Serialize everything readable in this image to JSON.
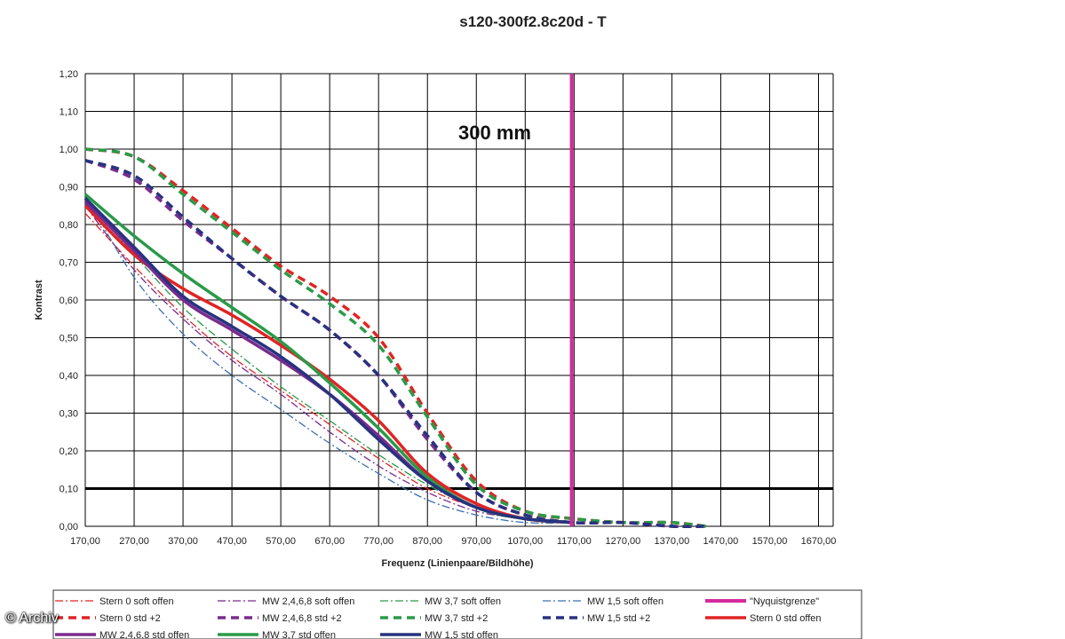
{
  "chart_data": {
    "type": "line",
    "title": "s120-300f2.8c20d - T",
    "annotation": "300 mm",
    "xlabel": "Frequenz (Linienpaare/Bildhöhe)",
    "ylabel": "Kontrast",
    "xlim": [
      170,
      1700
    ],
    "ylim": [
      0,
      1.2
    ],
    "x_ticks": [
      "170,00",
      "270,00",
      "370,00",
      "470,00",
      "570,00",
      "670,00",
      "770,00",
      "870,00",
      "970,00",
      "1070,00",
      "1170,00",
      "1270,00",
      "1370,00",
      "1470,00",
      "1570,00",
      "1670,00"
    ],
    "y_ticks": [
      "0,00",
      "0,10",
      "0,20",
      "0,30",
      "0,40",
      "0,50",
      "0,60",
      "0,70",
      "0,80",
      "0,90",
      "1,00",
      "1,10",
      "1,20"
    ],
    "grid": true,
    "legend_position": "bottom",
    "threshold_line": {
      "y": 0.1,
      "color": "#000000"
    },
    "series": [
      {
        "name": "Stern 0 soft offen",
        "color": "#e02424",
        "style": "dashdot",
        "x": [
          170,
          270,
          370,
          470,
          570,
          670,
          770,
          870,
          970,
          1070,
          1170
        ],
        "y": [
          0.83,
          0.69,
          0.56,
          0.45,
          0.36,
          0.27,
          0.18,
          0.1,
          0.05,
          0.02,
          0.01
        ]
      },
      {
        "name": "MW 2,4,6,8 soft offen",
        "color": "#7a2b8e",
        "style": "dashdot",
        "x": [
          170,
          270,
          370,
          470,
          570,
          670,
          770,
          870,
          970,
          1070,
          1170
        ],
        "y": [
          0.85,
          0.68,
          0.55,
          0.44,
          0.35,
          0.25,
          0.16,
          0.09,
          0.04,
          0.02,
          0.01
        ]
      },
      {
        "name": "MW 3,7 soft offen",
        "color": "#2a9a48",
        "style": "dashdot",
        "x": [
          170,
          270,
          370,
          470,
          570,
          670,
          770,
          870,
          970,
          1070,
          1170
        ],
        "y": [
          0.87,
          0.72,
          0.58,
          0.47,
          0.37,
          0.28,
          0.19,
          0.11,
          0.05,
          0.02,
          0.01
        ]
      },
      {
        "name": "MW 1,5 soft offen",
        "color": "#3a6fb0",
        "style": "dashdot",
        "x": [
          170,
          270,
          370,
          470,
          570,
          670,
          770,
          870,
          970,
          1070,
          1170
        ],
        "y": [
          0.88,
          0.66,
          0.51,
          0.4,
          0.31,
          0.22,
          0.14,
          0.07,
          0.03,
          0.01,
          0.01
        ]
      },
      {
        "name": "\"Nyquistgrenze\"",
        "color": "#d42a9c",
        "style": "vertical",
        "x_at": 1165
      },
      {
        "name": "Stern 0 std +2",
        "color": "#e02424",
        "style": "dashed",
        "x": [
          170,
          270,
          370,
          470,
          570,
          670,
          770,
          870,
          970,
          1070,
          1170,
          1270,
          1370,
          1440
        ],
        "y": [
          1.0,
          0.98,
          0.89,
          0.79,
          0.69,
          0.61,
          0.5,
          0.3,
          0.12,
          0.04,
          0.02,
          0.01,
          0.01,
          0.0
        ]
      },
      {
        "name": "MW 2,4,6,8 std +2",
        "color": "#7a2b8e",
        "style": "dashed",
        "x": [
          170,
          270,
          370,
          470,
          570,
          670,
          770,
          870,
          970,
          1070,
          1170,
          1270,
          1370,
          1440
        ],
        "y": [
          0.97,
          0.92,
          0.81,
          0.71,
          0.61,
          0.52,
          0.4,
          0.23,
          0.09,
          0.03,
          0.01,
          0.01,
          0.0,
          0.0
        ]
      },
      {
        "name": "MW 3,7 std +2",
        "color": "#2a9a48",
        "style": "dashed",
        "x": [
          170,
          270,
          370,
          470,
          570,
          670,
          770,
          870,
          970,
          1070,
          1170,
          1270,
          1370,
          1440
        ],
        "y": [
          1.0,
          0.98,
          0.88,
          0.78,
          0.68,
          0.59,
          0.48,
          0.29,
          0.11,
          0.04,
          0.02,
          0.01,
          0.01,
          0.0
        ]
      },
      {
        "name": "MW 1,5 std +2",
        "color": "#27337f",
        "style": "dashed",
        "x": [
          170,
          270,
          370,
          470,
          570,
          670,
          770,
          870,
          970,
          1070,
          1170,
          1270,
          1370,
          1440
        ],
        "y": [
          0.97,
          0.93,
          0.82,
          0.71,
          0.61,
          0.52,
          0.4,
          0.24,
          0.09,
          0.03,
          0.01,
          0.01,
          0.0,
          0.0
        ]
      },
      {
        "name": "Stern 0 std offen",
        "color": "#e02424",
        "style": "solid",
        "x": [
          170,
          270,
          370,
          470,
          570,
          670,
          770,
          870,
          970,
          1070,
          1170
        ],
        "y": [
          0.85,
          0.72,
          0.63,
          0.56,
          0.48,
          0.39,
          0.28,
          0.14,
          0.06,
          0.02,
          0.01
        ]
      },
      {
        "name": "MW 2,4,6,8 std offen",
        "color": "#7a2b8e",
        "style": "solid",
        "x": [
          170,
          270,
          370,
          470,
          570,
          670,
          770,
          870,
          970,
          1070,
          1170
        ],
        "y": [
          0.86,
          0.73,
          0.6,
          0.52,
          0.44,
          0.35,
          0.24,
          0.12,
          0.05,
          0.02,
          0.01
        ]
      },
      {
        "name": "MW 3,7 std offen",
        "color": "#2a9a48",
        "style": "solid",
        "x": [
          170,
          270,
          370,
          470,
          570,
          670,
          770,
          870,
          970,
          1070,
          1170
        ],
        "y": [
          0.88,
          0.77,
          0.67,
          0.58,
          0.49,
          0.38,
          0.26,
          0.13,
          0.05,
          0.02,
          0.01
        ]
      },
      {
        "name": "MW 1,5 std offen",
        "color": "#27337f",
        "style": "solid",
        "x": [
          170,
          270,
          370,
          470,
          570,
          670,
          770,
          870,
          970,
          1070,
          1170
        ],
        "y": [
          0.87,
          0.74,
          0.61,
          0.53,
          0.45,
          0.35,
          0.23,
          0.12,
          0.05,
          0.02,
          0.01
        ]
      }
    ]
  },
  "watermark": "© Archiv"
}
